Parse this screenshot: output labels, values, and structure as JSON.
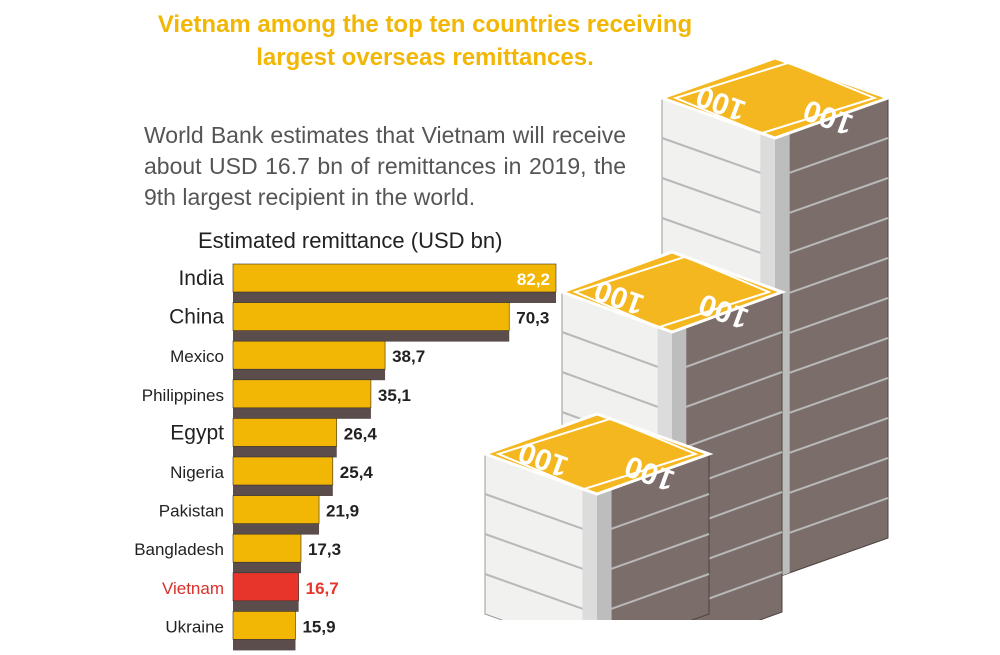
{
  "header": {
    "title": "Vietnam among the top ten countries receiving largest overseas remittances.",
    "subtitle": "World Bank estimates that Vietnam will receive about USD 16.7 bn of remittances in 2019, the 9th largest recipient in the world."
  },
  "illustration": {
    "banknote_label": "100",
    "icon": "stacks-of-banknotes-icon"
  },
  "colors": {
    "accent": "#f2b705",
    "highlight": "#e8352b",
    "shadow": "#5a4d4b",
    "label": "#222222",
    "highlight_label": "#d9302a"
  },
  "chart_data": {
    "type": "bar",
    "orientation": "horizontal",
    "title": "Estimated remittance (USD bn)",
    "categories": [
      "India",
      "China",
      "Mexico",
      "Philippines",
      "Egypt",
      "Nigeria",
      "Pakistan",
      "Bangladesh",
      "Vietnam",
      "Ukraine"
    ],
    "values": [
      82.2,
      70.3,
      38.7,
      35.1,
      26.4,
      25.4,
      21.9,
      17.3,
      16.7,
      15.9
    ],
    "value_labels": [
      "82,2",
      "70,3",
      "38,7",
      "35,1",
      "26,4",
      "25,4",
      "21,9",
      "17,3",
      "16,7",
      "15,9"
    ],
    "highlight": "Vietnam",
    "xlim": [
      0,
      82.2
    ],
    "grid": false,
    "legend": "none"
  }
}
